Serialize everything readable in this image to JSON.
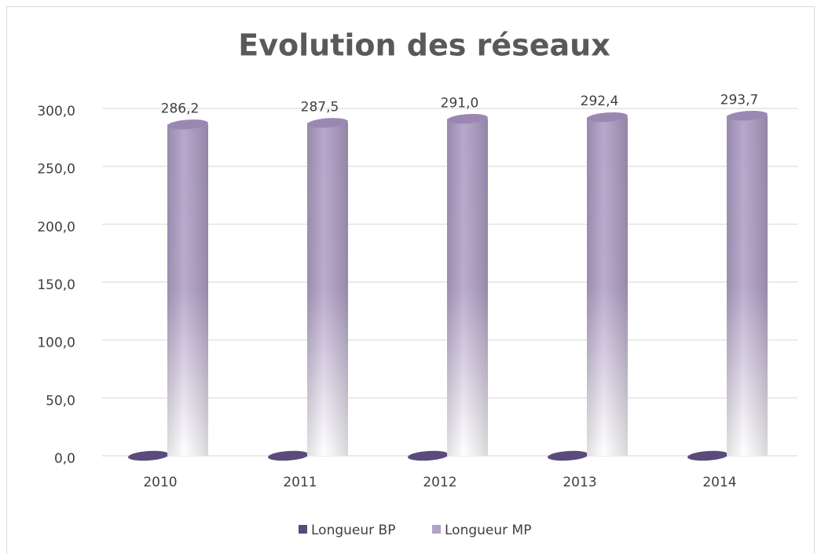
{
  "chart_data": {
    "type": "bar",
    "title": "Evolution des réseaux",
    "categories": [
      "2010",
      "2011",
      "2012",
      "2013",
      "2014"
    ],
    "series": [
      {
        "name": "Longueur BP",
        "color": "#5b4a7c",
        "values": [
          0,
          0,
          0,
          0,
          0
        ]
      },
      {
        "name": "Longueur MP",
        "color": "#b1a0c7",
        "values": [
          286.2,
          287.5,
          291.0,
          292.4,
          293.7
        ],
        "value_labels": [
          "286,2",
          "287,5",
          "291,0",
          "292,4",
          "293,7"
        ]
      }
    ],
    "ylim": [
      0,
      300
    ],
    "yticks": [
      {
        "value": 0,
        "label": "0,0"
      },
      {
        "value": 50,
        "label": "50,0"
      },
      {
        "value": 100,
        "label": "100,0"
      },
      {
        "value": 150,
        "label": "150,0"
      },
      {
        "value": 200,
        "label": "200,0"
      },
      {
        "value": 250,
        "label": "250,0"
      },
      {
        "value": 300,
        "label": "300,0"
      }
    ],
    "grid": true,
    "legend": "bottom"
  }
}
